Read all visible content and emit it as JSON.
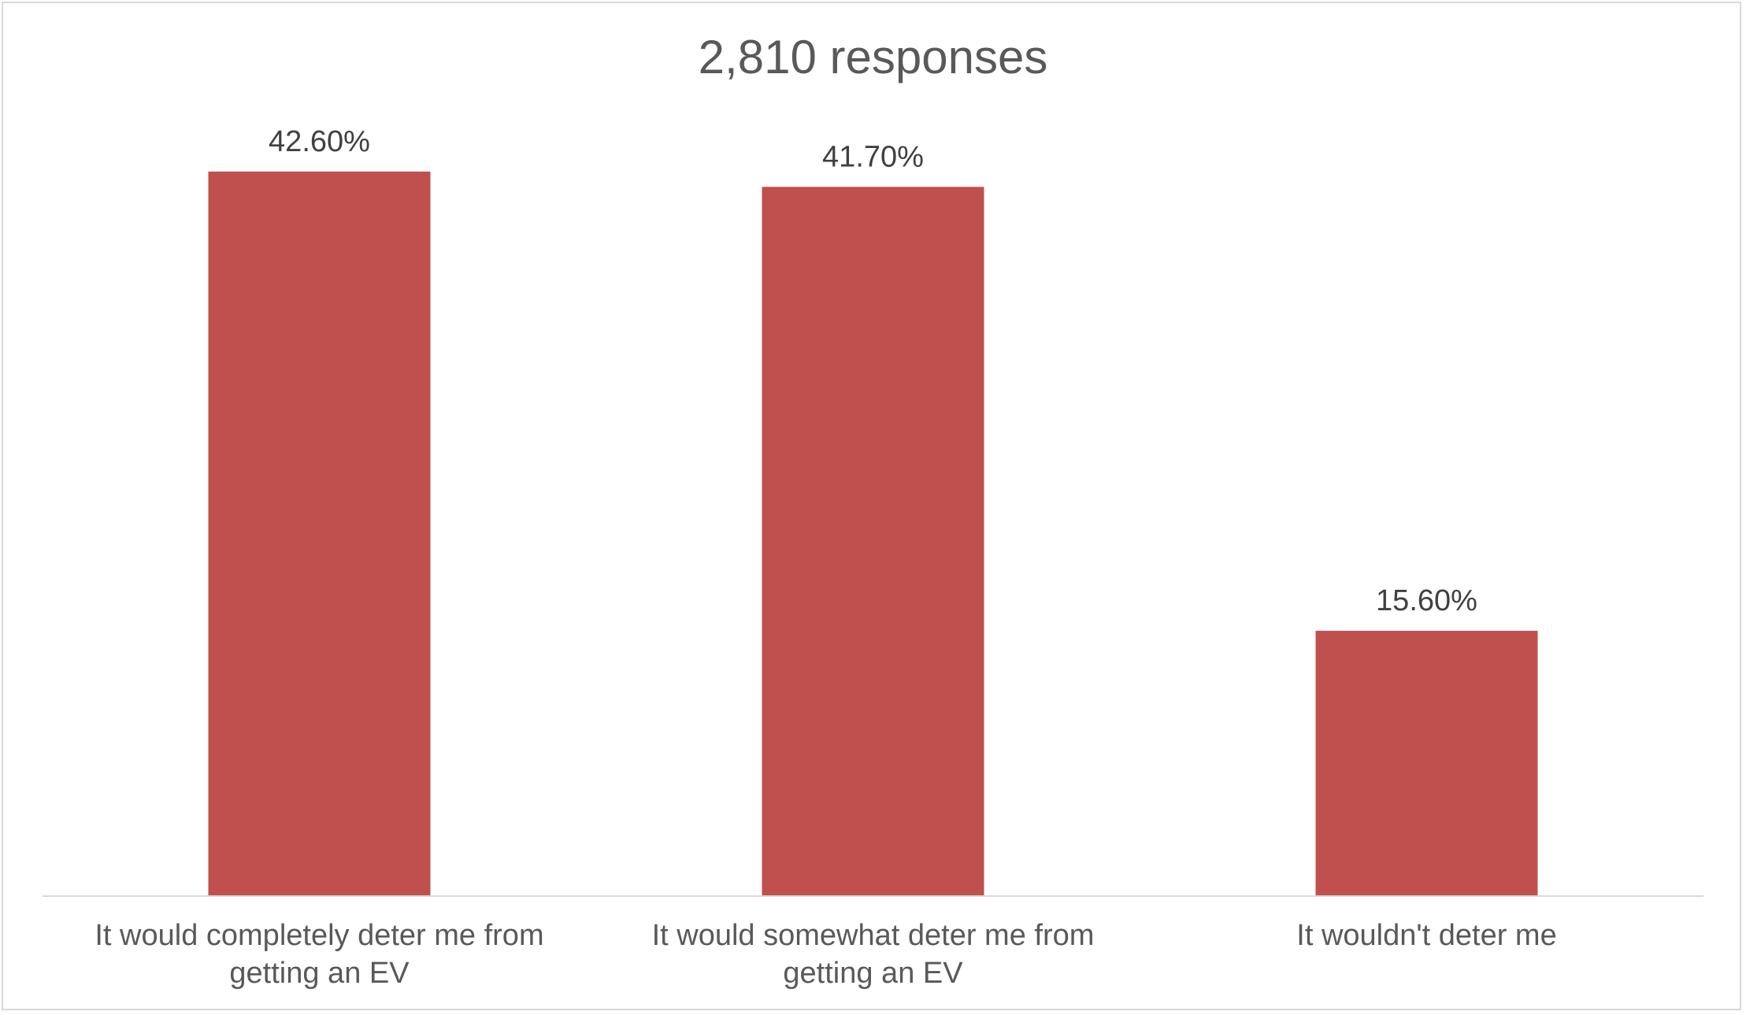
{
  "chart_data": {
    "type": "bar",
    "title": "2,810 responses",
    "categories": [
      "It would completely deter me from getting an EV",
      "It would somewhat deter me from getting an EV",
      "It wouldn't deter me"
    ],
    "values": [
      42.6,
      41.7,
      15.6
    ],
    "value_labels": [
      "42.60%",
      "41.70%",
      "15.60%"
    ],
    "xlabel": "",
    "ylabel": "",
    "ylim": [
      0,
      45
    ],
    "grid": false,
    "legend": "none",
    "bar_color": "#c0504d",
    "axis_color": "#d9d9d9"
  }
}
